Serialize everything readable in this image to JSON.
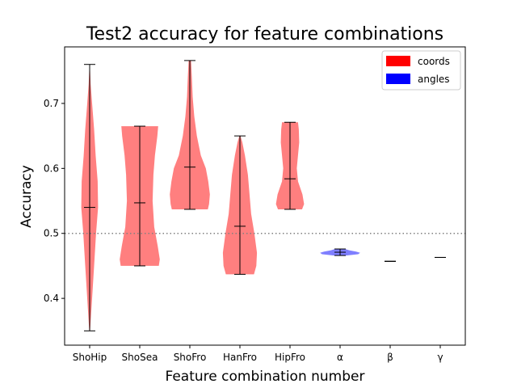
{
  "chart_data": {
    "type": "violin",
    "title": "Test2 accuracy for feature combinations",
    "xlabel": "Feature combination number",
    "ylabel": "Accuracy",
    "categories": [
      "ShoHip",
      "ShoSea",
      "ShoFro",
      "HanFro",
      "HipFro",
      "α",
      "β",
      "γ"
    ],
    "ylim": [
      0.328,
      0.787
    ],
    "yticks": [
      0.4,
      0.5,
      0.6,
      0.7
    ],
    "ytick_labels": [
      "0.4",
      "0.5",
      "0.6",
      "0.7"
    ],
    "reference_line": {
      "y": 0.5,
      "style": "dotted",
      "color": "#808080"
    },
    "legend": {
      "position": "top-right",
      "entries": [
        {
          "label": "coords",
          "color": "#ff0000"
        },
        {
          "label": "angles",
          "color": "#0000ff"
        }
      ]
    },
    "series": [
      {
        "category": "ShoHip",
        "group": "coords",
        "min": 0.35,
        "max": 0.76,
        "median": 0.54,
        "profile": [
          [
            0.35,
            0.02
          ],
          [
            0.4,
            0.12
          ],
          [
            0.45,
            0.22
          ],
          [
            0.5,
            0.32
          ],
          [
            0.54,
            0.42
          ],
          [
            0.58,
            0.4
          ],
          [
            0.62,
            0.3
          ],
          [
            0.66,
            0.22
          ],
          [
            0.7,
            0.12
          ],
          [
            0.73,
            0.05
          ],
          [
            0.76,
            0.01
          ]
        ]
      },
      {
        "category": "ShoSea",
        "group": "coords",
        "min": 0.45,
        "max": 0.665,
        "median": 0.547,
        "profile": [
          [
            0.45,
            0.95
          ],
          [
            0.46,
            1.0
          ],
          [
            0.48,
            0.9
          ],
          [
            0.51,
            0.72
          ],
          [
            0.55,
            0.64
          ],
          [
            0.59,
            0.68
          ],
          [
            0.62,
            0.76
          ],
          [
            0.65,
            0.88
          ],
          [
            0.665,
            0.92
          ]
        ]
      },
      {
        "category": "ShoFro",
        "group": "coords",
        "min": 0.537,
        "max": 0.766,
        "median": 0.602,
        "profile": [
          [
            0.537,
            0.9
          ],
          [
            0.545,
            0.96
          ],
          [
            0.56,
            1.0
          ],
          [
            0.58,
            0.92
          ],
          [
            0.6,
            0.8
          ],
          [
            0.62,
            0.55
          ],
          [
            0.65,
            0.35
          ],
          [
            0.68,
            0.22
          ],
          [
            0.71,
            0.14
          ],
          [
            0.74,
            0.1
          ],
          [
            0.766,
            0.06
          ]
        ]
      },
      {
        "category": "HanFro",
        "group": "coords",
        "min": 0.437,
        "max": 0.65,
        "median": 0.511,
        "profile": [
          [
            0.437,
            0.7
          ],
          [
            0.45,
            0.82
          ],
          [
            0.47,
            0.85
          ],
          [
            0.5,
            0.72
          ],
          [
            0.53,
            0.56
          ],
          [
            0.56,
            0.48
          ],
          [
            0.59,
            0.4
          ],
          [
            0.62,
            0.25
          ],
          [
            0.64,
            0.12
          ],
          [
            0.65,
            0.03
          ]
        ]
      },
      {
        "category": "HipFro",
        "group": "coords",
        "min": 0.537,
        "max": 0.671,
        "median": 0.584,
        "profile": [
          [
            0.537,
            0.6
          ],
          [
            0.545,
            0.7
          ],
          [
            0.56,
            0.62
          ],
          [
            0.58,
            0.4
          ],
          [
            0.6,
            0.34
          ],
          [
            0.62,
            0.4
          ],
          [
            0.64,
            0.46
          ],
          [
            0.66,
            0.44
          ],
          [
            0.671,
            0.4
          ]
        ]
      },
      {
        "category": "α",
        "group": "angles",
        "min": 0.466,
        "max": 0.476,
        "median": 0.471,
        "profile": [
          [
            0.466,
            0.3
          ],
          [
            0.468,
            0.9
          ],
          [
            0.47,
            1.0
          ],
          [
            0.472,
            0.8
          ],
          [
            0.474,
            0.45
          ],
          [
            0.476,
            0.25
          ]
        ]
      },
      {
        "category": "β",
        "group": "angles",
        "min": 0.457,
        "max": 0.457,
        "median": 0.457,
        "profile": []
      },
      {
        "category": "γ",
        "group": "angles",
        "min": 0.463,
        "max": 0.463,
        "median": 0.463,
        "profile": []
      }
    ]
  }
}
